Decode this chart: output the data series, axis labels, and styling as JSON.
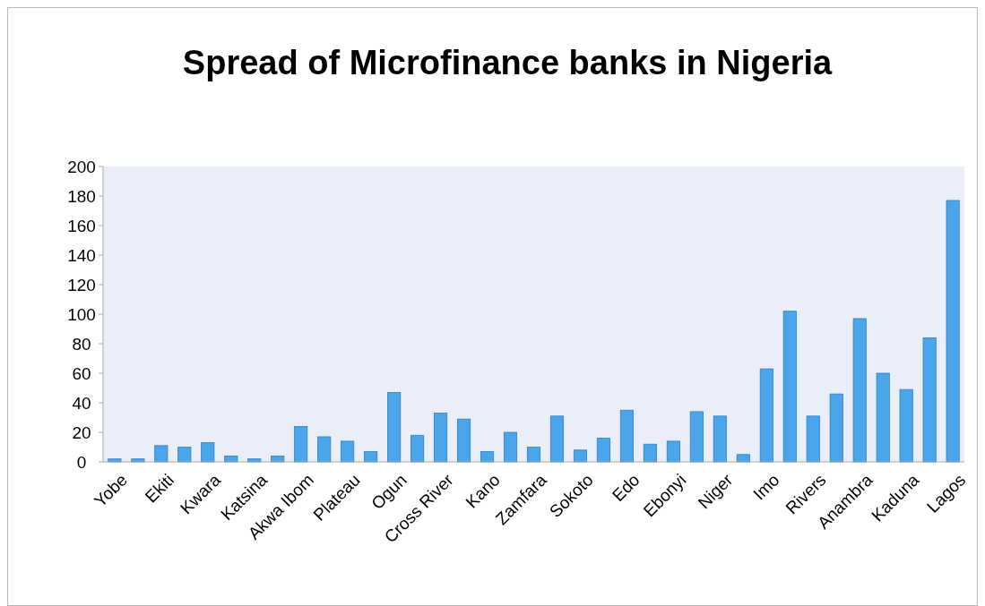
{
  "chart_data": {
    "type": "bar",
    "title": "Spread of Microfinance banks in Nigeria",
    "categories": [
      "Yobe",
      null,
      "Ekiti",
      null,
      "Kwara",
      null,
      "Katsina",
      null,
      "Akwa Ibom",
      null,
      "Plateau",
      null,
      "Ogun",
      null,
      "Cross River",
      null,
      "Kano",
      null,
      "Zamfara",
      null,
      "Sokoto",
      null,
      "Edo",
      null,
      "Ebonyi",
      null,
      "Niger",
      null,
      "Imo",
      null,
      "Rivers",
      null,
      "Anambra",
      null,
      "Kaduna",
      null,
      "Lagos"
    ],
    "values": [
      2,
      2,
      11,
      10,
      13,
      4,
      2,
      4,
      24,
      17,
      14,
      7,
      47,
      18,
      33,
      29,
      7,
      20,
      10,
      31,
      8,
      16,
      35,
      12,
      14,
      34,
      31,
      5,
      63,
      102,
      31,
      46,
      97,
      60,
      49,
      84,
      177
    ],
    "color": "#4aa5ea",
    "ylim": [
      0,
      200
    ],
    "yticks": [
      0,
      20,
      40,
      60,
      80,
      100,
      120,
      140,
      160,
      180,
      200
    ],
    "grid": false
  }
}
